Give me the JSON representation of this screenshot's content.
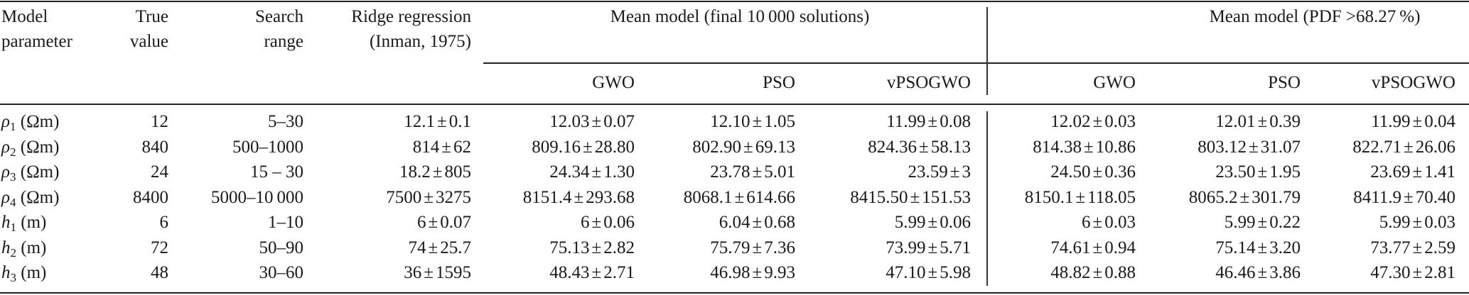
{
  "header": {
    "model_parameter": [
      "Model",
      "parameter"
    ],
    "true_value": [
      "True",
      "value"
    ],
    "search_range": [
      "Search",
      "range"
    ],
    "ridge": [
      "Ridge regression",
      "(Inman, 1975)"
    ],
    "group1": "Mean model (final 10 000 solutions)",
    "group2": "Mean model (PDF >68.27 %)",
    "sub_columns": [
      "GWO",
      "PSO",
      "vPSOGWO",
      "GWO",
      "PSO",
      "vPSOGWO"
    ]
  },
  "rows": [
    {
      "symbol": "ρ",
      "sub": "1",
      "unit": "(Ωm)",
      "true": "12",
      "range": "5–30",
      "ridge": [
        "12.1",
        "0.1"
      ],
      "vals": [
        [
          "12.03",
          "0.07"
        ],
        [
          "12.10",
          "1.05"
        ],
        [
          "11.99",
          "0.08"
        ],
        [
          "12.02",
          "0.03"
        ],
        [
          "12.01",
          "0.39"
        ],
        [
          "11.99",
          "0.04"
        ]
      ]
    },
    {
      "symbol": "ρ",
      "sub": "2",
      "unit": "(Ωm)",
      "true": "840",
      "range": "500–1000",
      "ridge": [
        "814",
        "62"
      ],
      "vals": [
        [
          "809.16",
          "28.80"
        ],
        [
          "802.90",
          "69.13"
        ],
        [
          "824.36",
          "58.13"
        ],
        [
          "814.38",
          "10.86"
        ],
        [
          "803.12",
          "31.07"
        ],
        [
          "822.71",
          "26.06"
        ]
      ]
    },
    {
      "symbol": "ρ",
      "sub": "3",
      "unit": "(Ωm)",
      "true": "24",
      "range": "15 – 30",
      "ridge": [
        "18.2",
        "805"
      ],
      "vals": [
        [
          "24.34",
          "1.30"
        ],
        [
          "23.78",
          "5.01"
        ],
        [
          "23.59",
          "3"
        ],
        [
          "24.50",
          "0.36"
        ],
        [
          "23.50",
          "1.95"
        ],
        [
          "23.69",
          "1.41"
        ]
      ]
    },
    {
      "symbol": "ρ",
      "sub": "4",
      "unit": "(Ωm)",
      "true": "8400",
      "range": "5000–10 000",
      "ridge": [
        "7500",
        "3275"
      ],
      "vals": [
        [
          "8151.4",
          "293.68"
        ],
        [
          "8068.1",
          "614.66"
        ],
        [
          "8415.50",
          "151.53"
        ],
        [
          "8150.1",
          "118.05"
        ],
        [
          "8065.2",
          "301.79"
        ],
        [
          "8411.9",
          "70.40"
        ]
      ]
    },
    {
      "symbol": "h",
      "sub": "1",
      "unit": "(m)",
      "true": "6",
      "range": "1–10",
      "ridge": [
        "6",
        "0.07"
      ],
      "vals": [
        [
          "6",
          "0.06"
        ],
        [
          "6.04",
          "0.68"
        ],
        [
          "5.99",
          "0.06"
        ],
        [
          "6",
          "0.03"
        ],
        [
          "5.99",
          "0.22"
        ],
        [
          "5.99",
          "0.03"
        ]
      ]
    },
    {
      "symbol": "h",
      "sub": "2",
      "unit": "(m)",
      "true": "72",
      "range": "50–90",
      "ridge": [
        "74",
        "25.7"
      ],
      "vals": [
        [
          "75.13",
          "2.82"
        ],
        [
          "75.79",
          "7.36"
        ],
        [
          "73.99",
          "5.71"
        ],
        [
          "74.61",
          "0.94"
        ],
        [
          "75.14",
          "3.20"
        ],
        [
          "73.77",
          "2.59"
        ]
      ]
    },
    {
      "symbol": "h",
      "sub": "3",
      "unit": "(m)",
      "true": "48",
      "range": "30–60",
      "ridge": [
        "36",
        "1595"
      ],
      "vals": [
        [
          "48.43",
          "2.71"
        ],
        [
          "46.98",
          "9.93"
        ],
        [
          "47.10",
          "5.98"
        ],
        [
          "48.82",
          "0.88"
        ],
        [
          "46.46",
          "3.86"
        ],
        [
          "47.30",
          "2.81"
        ]
      ]
    }
  ],
  "pm_symbol": "±"
}
